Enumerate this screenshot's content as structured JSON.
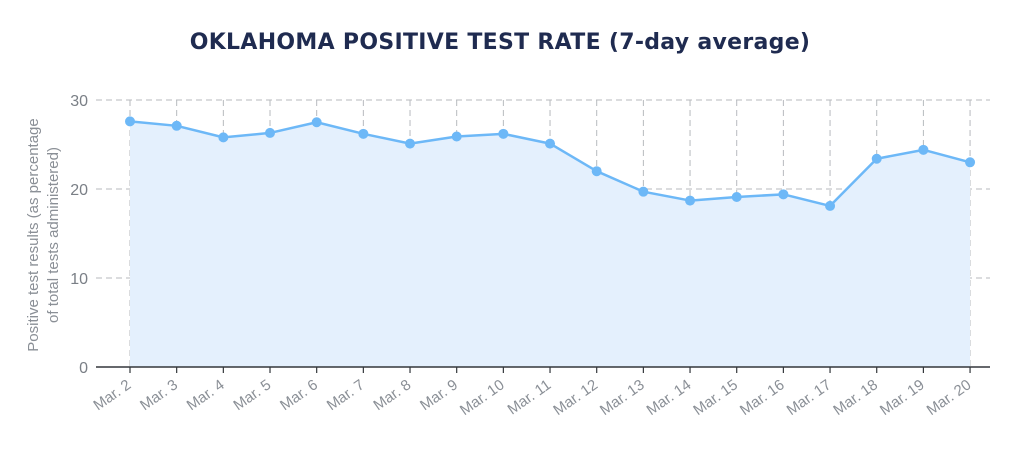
{
  "chart_data": {
    "type": "area",
    "title": "OKLAHOMA POSITIVE TEST RATE (7-day average)",
    "ylabel_lines": [
      "Positive test results (as percentage",
      "of total tests administered)"
    ],
    "xlabel": "",
    "categories": [
      "Mar. 2",
      "Mar. 3",
      "Mar. 4",
      "Mar. 5",
      "Mar. 6",
      "Mar. 7",
      "Mar. 8",
      "Mar. 9",
      "Mar. 10",
      "Mar. 11",
      "Mar. 12",
      "Mar. 13",
      "Mar. 14",
      "Mar. 15",
      "Mar. 16",
      "Mar. 17",
      "Mar. 18",
      "Mar. 19",
      "Mar. 20"
    ],
    "values": [
      27.6,
      27.1,
      25.8,
      26.3,
      27.5,
      26.2,
      25.1,
      25.9,
      26.2,
      25.1,
      22.0,
      19.7,
      18.7,
      19.1,
      19.4,
      18.1,
      23.4,
      24.4,
      23.0
    ],
    "ylim": [
      0,
      30
    ],
    "yticks": [
      0,
      10,
      20,
      30
    ],
    "grid": true,
    "colors": {
      "line": "#6db8f7",
      "fill": "#e4f0fd",
      "grid": "#b7babe",
      "axis": "#33373b"
    }
  }
}
